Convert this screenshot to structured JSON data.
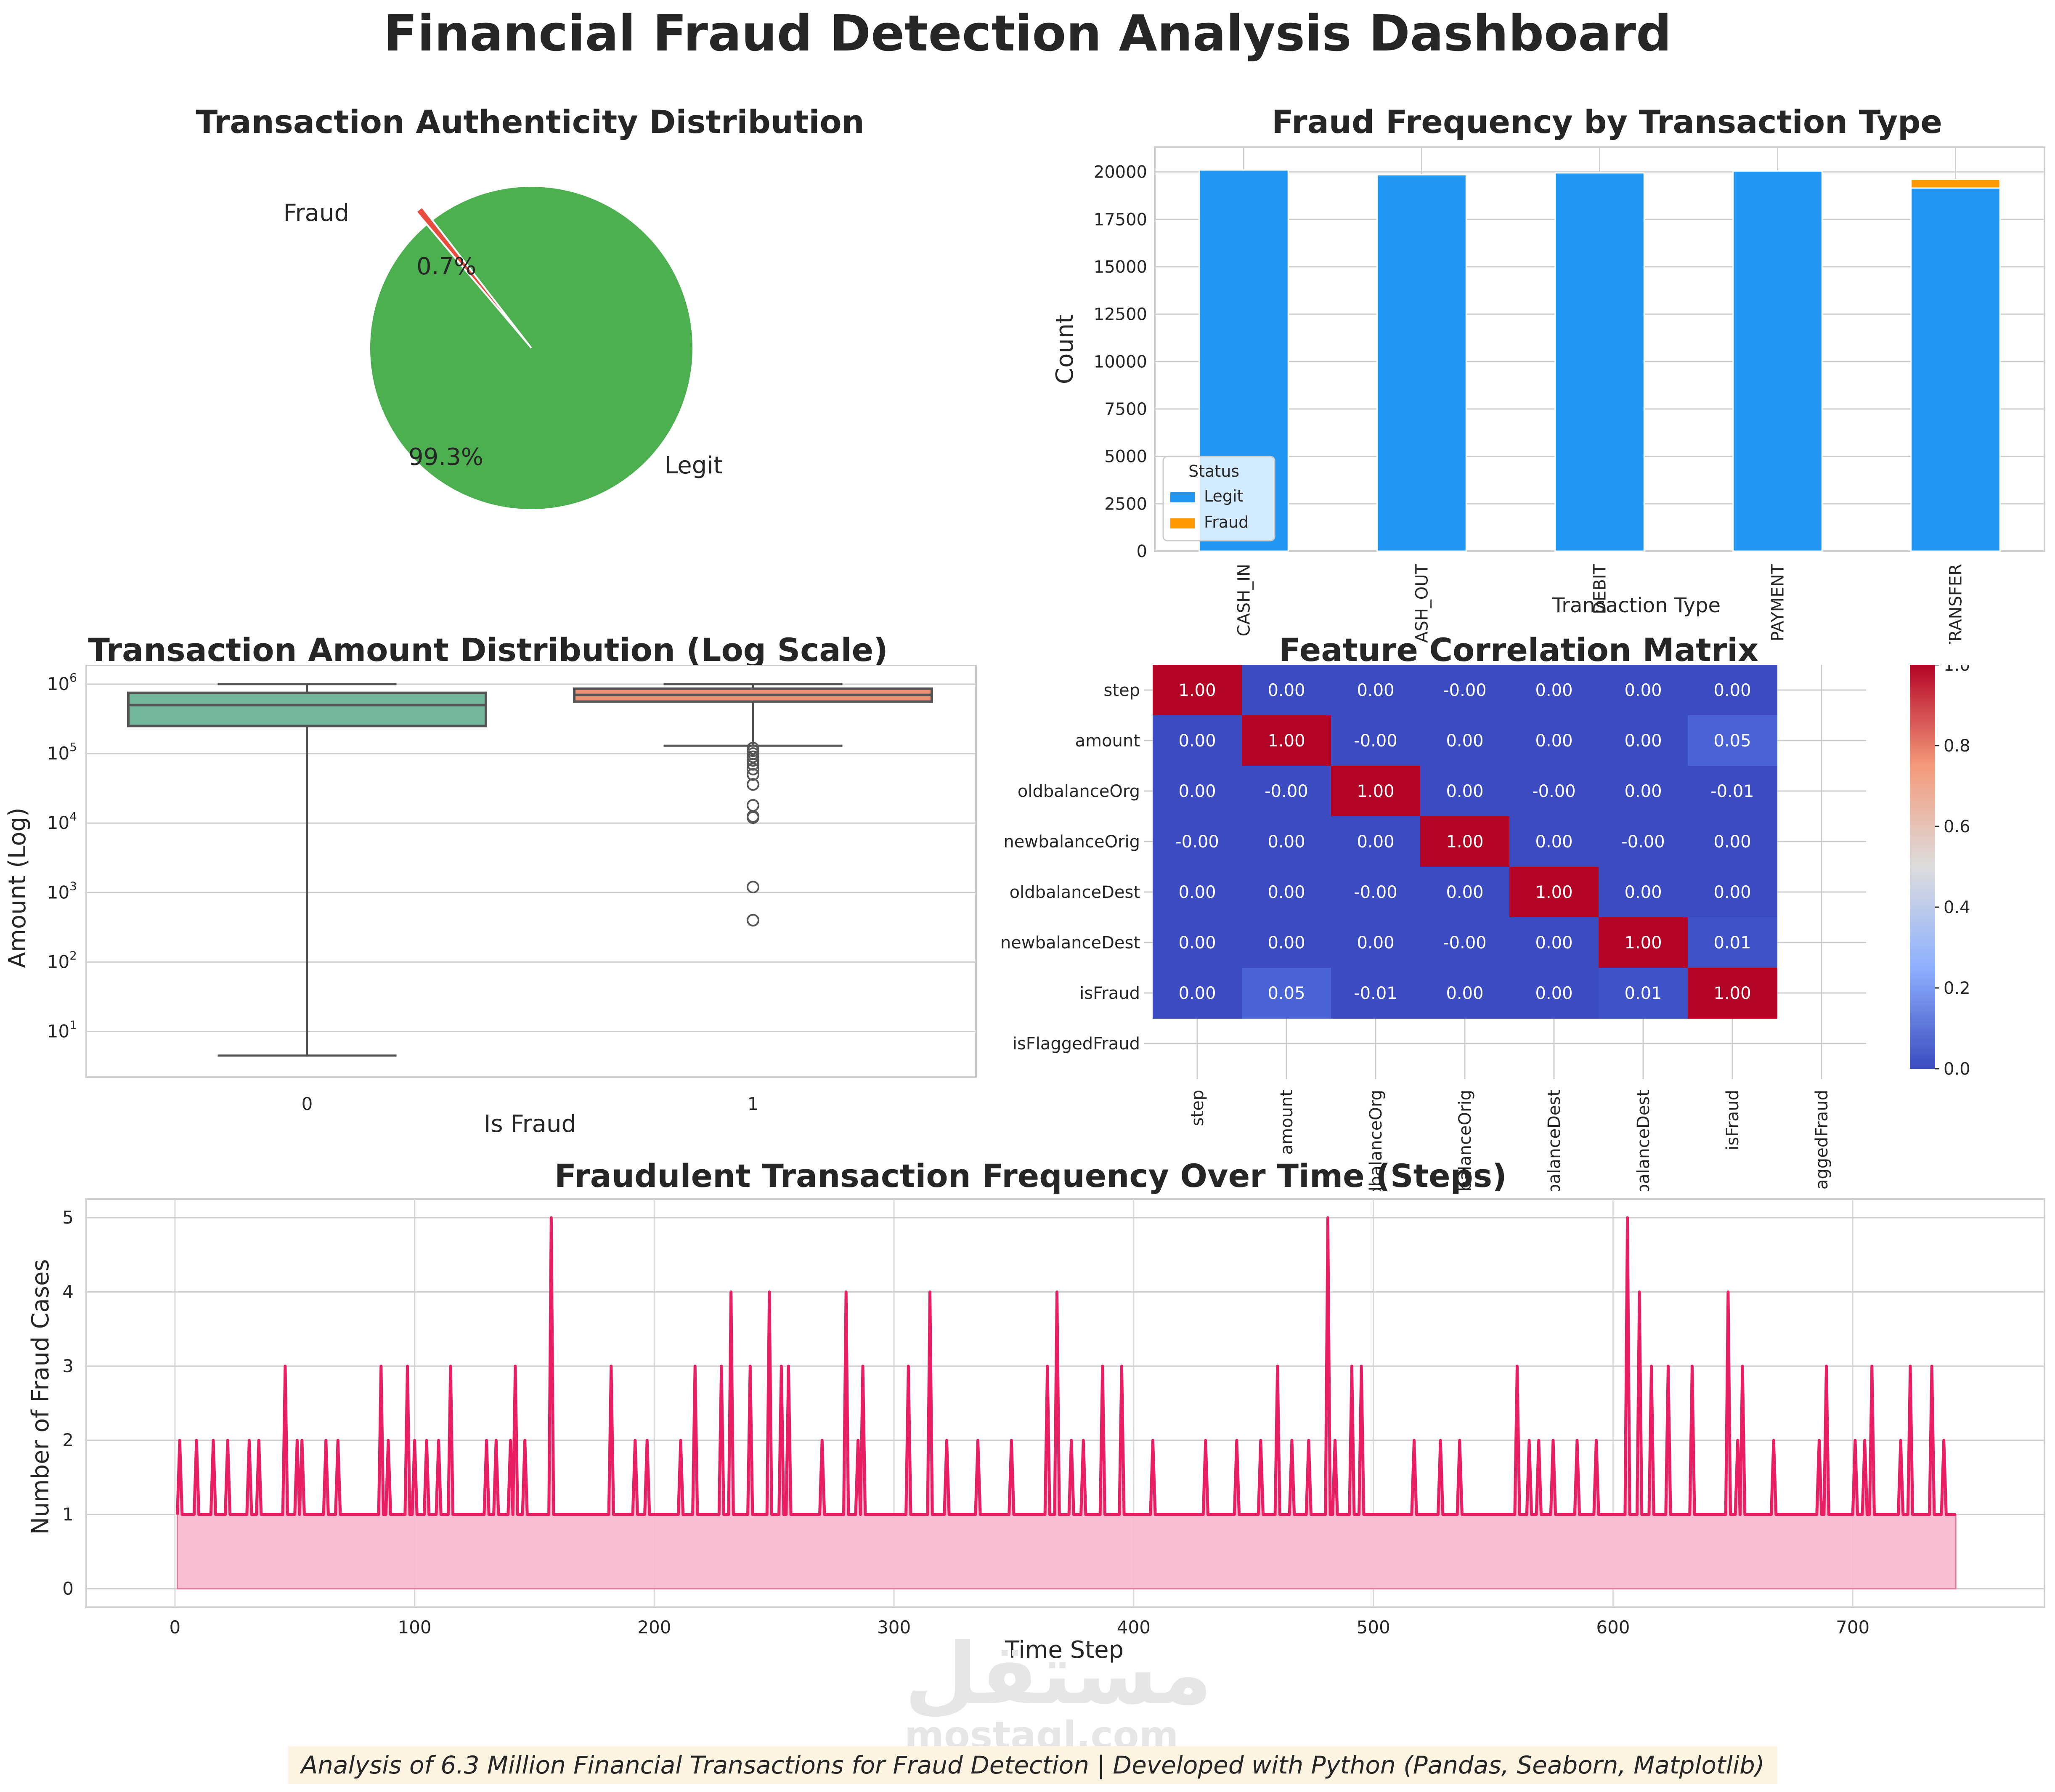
{
  "dashboard": {
    "title": "Financial Fraud Detection Analysis Dashboard",
    "footer": "Analysis of 6.3 Million Financial Transactions for Fraud Detection | Developed with Python (Pandas, Seaborn, Matplotlib)",
    "watermark": {
      "glyph": "مستقل",
      "text": "mostaql.com"
    }
  },
  "colors": {
    "legit_pie": "#4caf50",
    "fraud_pie": "#e74c3c",
    "legit_bar": "#2196f3",
    "fraud_bar": "#ff9800",
    "box_legit": "#73b79c",
    "box_fraud": "#eb9072",
    "line": "#e91e63",
    "fill": "#f8bbd0",
    "heat_low": "#3b4cc0",
    "heat_high": "#b40426"
  },
  "chart_data": [
    {
      "type": "pie",
      "title": "Transaction Authenticity Distribution",
      "labels": [
        "Legit",
        "Fraud"
      ],
      "values": [
        99.3,
        0.7
      ],
      "value_labels": [
        "99.3%",
        "0.7%"
      ],
      "explode": [
        0,
        0.1
      ]
    },
    {
      "type": "bar",
      "stacked": true,
      "title": "Fraud Frequency by Transaction Type",
      "xlabel": "Transaction Type",
      "ylabel": "Count",
      "categories": [
        "CASH_IN",
        "CASH_OUT",
        "DEBIT",
        "PAYMENT",
        "TRANSFER"
      ],
      "series": [
        {
          "name": "Legit",
          "values": [
            20100,
            19850,
            19950,
            20050,
            19150
          ]
        },
        {
          "name": "Fraud",
          "values": [
            0,
            0,
            0,
            0,
            450
          ]
        }
      ],
      "yticks": [
        0,
        2500,
        5000,
        7500,
        10000,
        12500,
        15000,
        17500,
        20000
      ],
      "ylim": [
        0,
        21300
      ],
      "legend": {
        "title": "Status",
        "position": "lower left",
        "entries": [
          "Legit",
          "Fraud"
        ]
      }
    },
    {
      "type": "box",
      "title": "Transaction Amount Distribution (Log Scale)",
      "xlabel": "Is Fraud",
      "ylabel": "Amount (Log)",
      "yscale": "log",
      "categories": [
        "0",
        "1"
      ],
      "yticks": [
        "10^1",
        "10^2",
        "10^3",
        "10^4",
        "10^5",
        "10^6"
      ],
      "boxes": [
        {
          "label": "0",
          "whisker_low": 4.5,
          "q1": 250000,
          "median": 500000,
          "q3": 750000,
          "whisker_high": 1000000,
          "outliers": []
        },
        {
          "label": "1",
          "whisker_low": 130000,
          "q1": 560000,
          "median": 700000,
          "q3": 860000,
          "whisker_high": 1000000,
          "outliers": [
            120000,
            110000,
            100000,
            90000,
            80000,
            70000,
            60000,
            50000,
            36000,
            18000,
            12500,
            12000,
            1200,
            400
          ]
        }
      ]
    },
    {
      "type": "heatmap",
      "title": "Feature Correlation Matrix",
      "row_labels": [
        "step",
        "amount",
        "oldbalanceOrg",
        "newbalanceOrig",
        "oldbalanceDest",
        "newbalanceDest",
        "isFraud",
        "isFlaggedFraud"
      ],
      "col_labels": [
        "step",
        "amount",
        "oldbalanceOrg",
        "newbalanceOrig",
        "oldbalanceDest",
        "newbalanceDest",
        "isFraud",
        "isFlaggedFraud"
      ],
      "matrix": [
        [
          "1.00",
          "0.00",
          "0.00",
          "-0.00",
          "0.00",
          "0.00",
          "0.00",
          ""
        ],
        [
          "0.00",
          "1.00",
          "-0.00",
          "0.00",
          "0.00",
          "0.00",
          "0.05",
          ""
        ],
        [
          "0.00",
          "-0.00",
          "1.00",
          "0.00",
          "-0.00",
          "0.00",
          "-0.01",
          ""
        ],
        [
          "-0.00",
          "0.00",
          "0.00",
          "1.00",
          "0.00",
          "-0.00",
          "0.00",
          ""
        ],
        [
          "0.00",
          "0.00",
          "-0.00",
          "0.00",
          "1.00",
          "0.00",
          "0.00",
          ""
        ],
        [
          "0.00",
          "0.00",
          "0.00",
          "-0.00",
          "0.00",
          "1.00",
          "0.01",
          ""
        ],
        [
          "0.00",
          "0.05",
          "-0.01",
          "0.00",
          "0.00",
          "0.01",
          "1.00",
          ""
        ],
        [
          "",
          "",
          "",
          "",
          "",
          "",
          "",
          ""
        ]
      ],
      "colorbar": {
        "ticks": [
          "0.0",
          "0.2",
          "0.4",
          "0.6",
          "0.8",
          "1.0"
        ],
        "range": [
          0,
          1
        ],
        "cmap": "coolwarm"
      }
    },
    {
      "type": "area",
      "title": "Fraudulent Transaction Frequency Over Time (Steps)",
      "xlabel": "Time Step",
      "ylabel": "Number of Fraud Cases",
      "xticks": [
        0,
        100,
        200,
        300,
        400,
        500,
        600,
        700
      ],
      "yticks": [
        0,
        1,
        2,
        3,
        4,
        5
      ],
      "xlim": [
        -37,
        780
      ],
      "ylim": [
        -0.25,
        5.25
      ],
      "x_range": [
        1,
        743
      ],
      "peaks": [
        {
          "x": 2,
          "y": 2
        },
        {
          "x": 9,
          "y": 2
        },
        {
          "x": 16,
          "y": 2
        },
        {
          "x": 22,
          "y": 2
        },
        {
          "x": 31,
          "y": 2
        },
        {
          "x": 35,
          "y": 2
        },
        {
          "x": 46,
          "y": 3
        },
        {
          "x": 51,
          "y": 2
        },
        {
          "x": 53,
          "y": 2
        },
        {
          "x": 63,
          "y": 2
        },
        {
          "x": 68,
          "y": 2
        },
        {
          "x": 86,
          "y": 3
        },
        {
          "x": 89,
          "y": 2
        },
        {
          "x": 97,
          "y": 3
        },
        {
          "x": 100,
          "y": 2
        },
        {
          "x": 105,
          "y": 2
        },
        {
          "x": 110,
          "y": 2
        },
        {
          "x": 115,
          "y": 3
        },
        {
          "x": 130,
          "y": 2
        },
        {
          "x": 134,
          "y": 2
        },
        {
          "x": 140,
          "y": 2
        },
        {
          "x": 142,
          "y": 3
        },
        {
          "x": 146,
          "y": 2
        },
        {
          "x": 157,
          "y": 5
        },
        {
          "x": 182,
          "y": 3
        },
        {
          "x": 192,
          "y": 2
        },
        {
          "x": 197,
          "y": 2
        },
        {
          "x": 211,
          "y": 2
        },
        {
          "x": 217,
          "y": 3
        },
        {
          "x": 228,
          "y": 3
        },
        {
          "x": 232,
          "y": 4
        },
        {
          "x": 240,
          "y": 3
        },
        {
          "x": 248,
          "y": 4
        },
        {
          "x": 253,
          "y": 3
        },
        {
          "x": 256,
          "y": 3
        },
        {
          "x": 270,
          "y": 2
        },
        {
          "x": 280,
          "y": 4
        },
        {
          "x": 285,
          "y": 2
        },
        {
          "x": 287,
          "y": 3
        },
        {
          "x": 306,
          "y": 3
        },
        {
          "x": 315,
          "y": 4
        },
        {
          "x": 322,
          "y": 2
        },
        {
          "x": 335,
          "y": 2
        },
        {
          "x": 349,
          "y": 2
        },
        {
          "x": 364,
          "y": 3
        },
        {
          "x": 368,
          "y": 4
        },
        {
          "x": 374,
          "y": 2
        },
        {
          "x": 379,
          "y": 2
        },
        {
          "x": 387,
          "y": 3
        },
        {
          "x": 395,
          "y": 3
        },
        {
          "x": 408,
          "y": 2
        },
        {
          "x": 430,
          "y": 2
        },
        {
          "x": 443,
          "y": 2
        },
        {
          "x": 453,
          "y": 2
        },
        {
          "x": 460,
          "y": 3
        },
        {
          "x": 466,
          "y": 2
        },
        {
          "x": 473,
          "y": 2
        },
        {
          "x": 481,
          "y": 5
        },
        {
          "x": 484,
          "y": 2
        },
        {
          "x": 491,
          "y": 3
        },
        {
          "x": 495,
          "y": 3
        },
        {
          "x": 517,
          "y": 2
        },
        {
          "x": 528,
          "y": 2
        },
        {
          "x": 536,
          "y": 2
        },
        {
          "x": 560,
          "y": 3
        },
        {
          "x": 565,
          "y": 2
        },
        {
          "x": 569,
          "y": 2
        },
        {
          "x": 575,
          "y": 2
        },
        {
          "x": 585,
          "y": 2
        },
        {
          "x": 593,
          "y": 2
        },
        {
          "x": 606,
          "y": 5
        },
        {
          "x": 611,
          "y": 4
        },
        {
          "x": 616,
          "y": 3
        },
        {
          "x": 623,
          "y": 3
        },
        {
          "x": 633,
          "y": 3
        },
        {
          "x": 648,
          "y": 4
        },
        {
          "x": 652,
          "y": 2
        },
        {
          "x": 654,
          "y": 3
        },
        {
          "x": 667,
          "y": 2
        },
        {
          "x": 686,
          "y": 2
        },
        {
          "x": 689,
          "y": 3
        },
        {
          "x": 701,
          "y": 2
        },
        {
          "x": 705,
          "y": 2
        },
        {
          "x": 708,
          "y": 3
        },
        {
          "x": 720,
          "y": 2
        },
        {
          "x": 724,
          "y": 3
        },
        {
          "x": 733,
          "y": 3
        },
        {
          "x": 738,
          "y": 2
        }
      ],
      "baseline": 1
    }
  ],
  "panels": {
    "pie": {
      "title": "Transaction Authenticity Distribution",
      "label_legit": "Legit",
      "label_fraud": "Fraud",
      "pct_legit": "99.3%",
      "pct_fraud": "0.7%"
    },
    "bar": {
      "title": "Fraud Frequency by Transaction Type",
      "ylabel": "Count",
      "xlabel": "Transaction Type",
      "legend_title": "Status",
      "legend_legit": "Legit",
      "legend_fraud": "Fraud"
    },
    "box": {
      "title": "Transaction Amount Distribution (Log Scale)",
      "ylabel": "Amount (Log)",
      "xlabel": "Is Fraud"
    },
    "heat": {
      "title": "Feature Correlation Matrix"
    },
    "line": {
      "title": "Fraudulent Transaction Frequency Over Time (Steps)",
      "ylabel": "Number of Fraud Cases",
      "xlabel": "Time Step"
    }
  }
}
